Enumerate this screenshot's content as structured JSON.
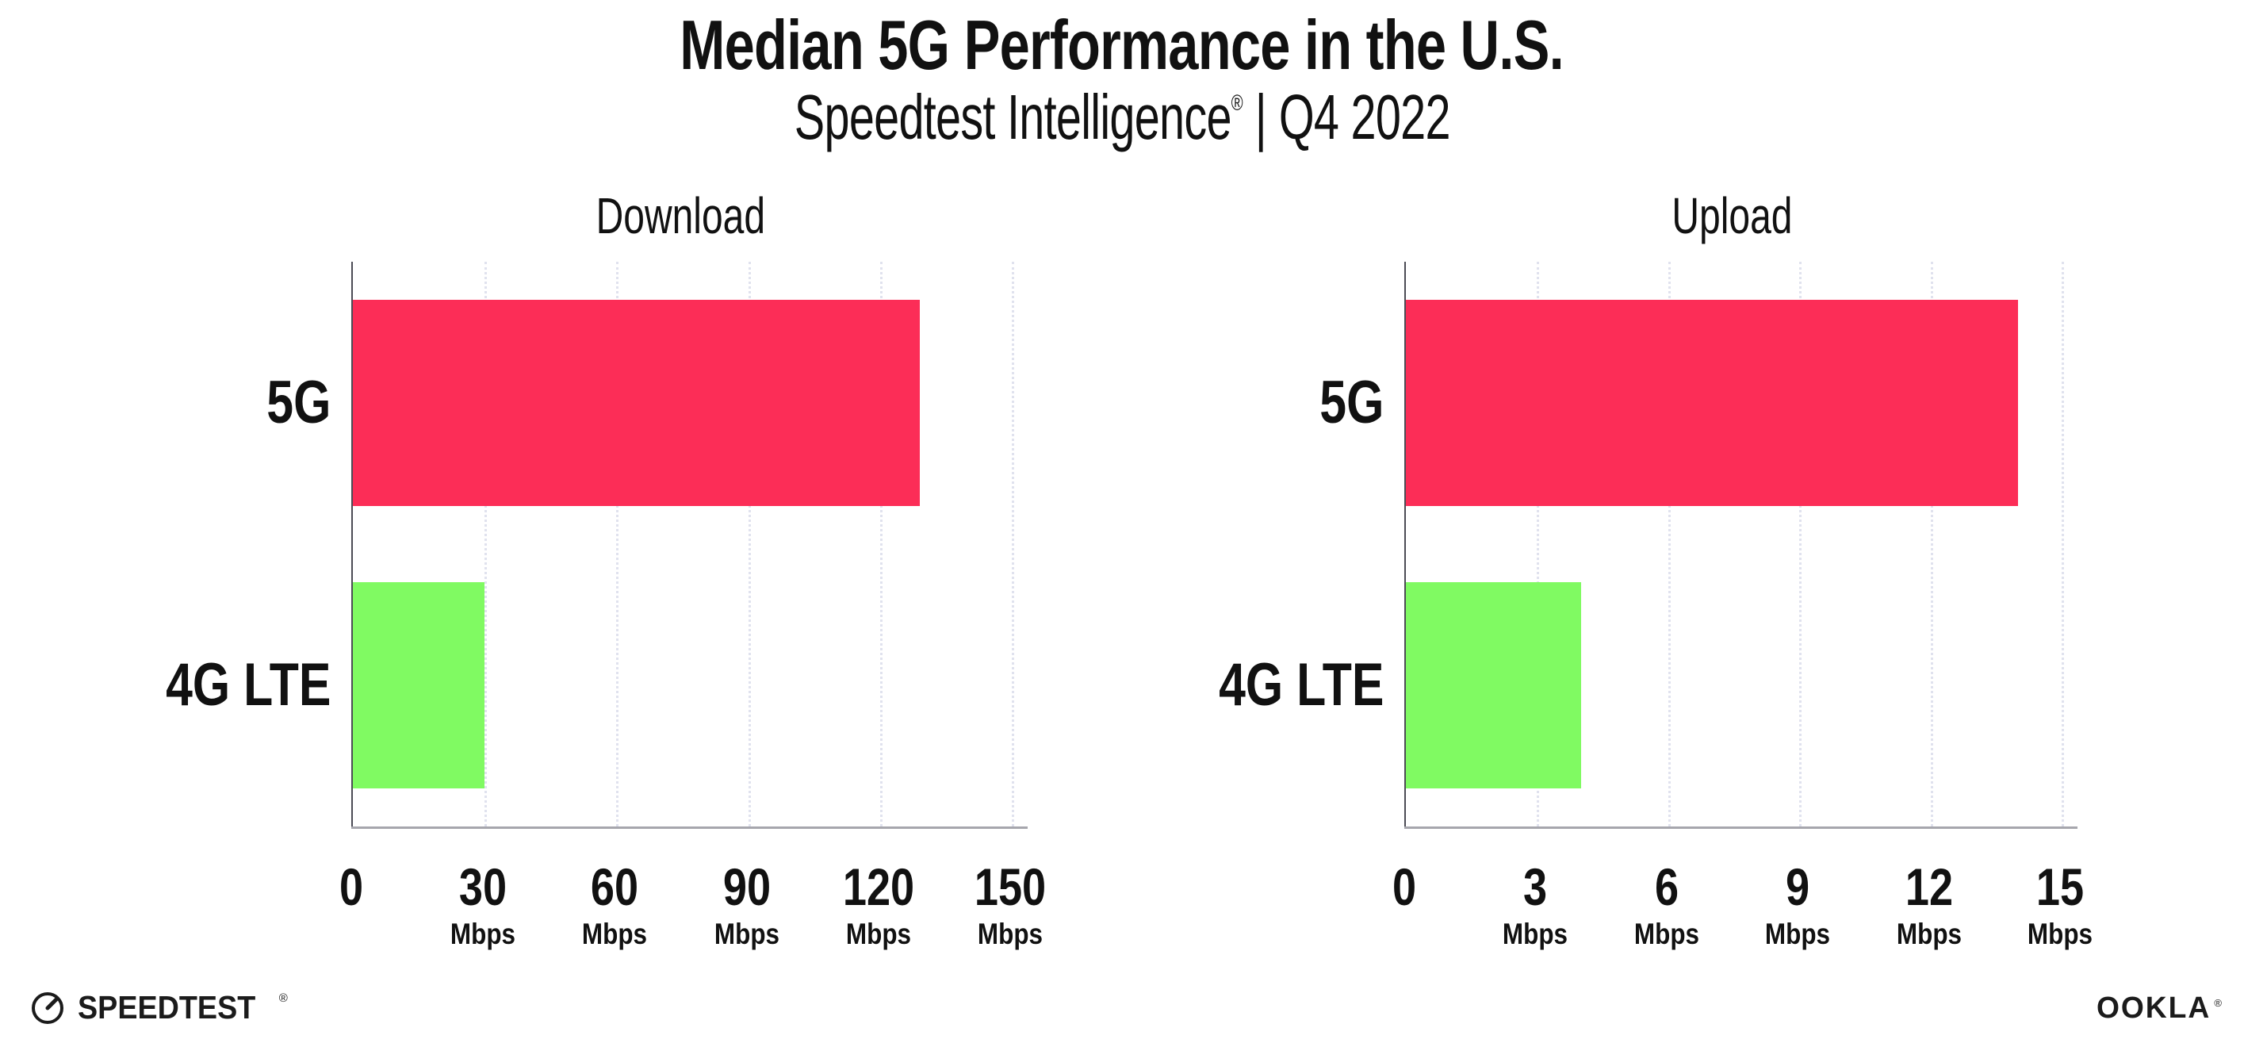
{
  "header": {
    "title": "Median 5G Performance in the U.S.",
    "subtitle_product": "Speedtest Intelligence",
    "subtitle_reg": "®",
    "subtitle_sep": "|",
    "subtitle_period": "Q4 2022"
  },
  "chart_data": [
    {
      "type": "bar",
      "orientation": "horizontal",
      "title": "Download",
      "categories": [
        "5G",
        "4G LTE"
      ],
      "values": [
        129,
        30
      ],
      "unit": "Mbps",
      "xlim": [
        0,
        150
      ],
      "xticks": [
        0,
        30,
        60,
        90,
        120,
        150
      ],
      "tick_labels": [
        {
          "label": "0",
          "unit": ""
        },
        {
          "label": "30",
          "unit": "Mbps"
        },
        {
          "label": "60",
          "unit": "Mbps"
        },
        {
          "label": "90",
          "unit": "Mbps"
        },
        {
          "label": "120",
          "unit": "Mbps"
        },
        {
          "label": "150",
          "unit": "Mbps"
        }
      ],
      "colors": [
        "#fc2d57",
        "#80fa62"
      ],
      "grid": "vertical-dotted",
      "legend": "none"
    },
    {
      "type": "bar",
      "orientation": "horizontal",
      "title": "Upload",
      "categories": [
        "5G",
        "4G LTE"
      ],
      "values": [
        14,
        4
      ],
      "unit": "Mbps",
      "xlim": [
        0,
        15
      ],
      "xticks": [
        0,
        3,
        6,
        9,
        12,
        15
      ],
      "tick_labels": [
        {
          "label": "0",
          "unit": ""
        },
        {
          "label": "3",
          "unit": "Mbps"
        },
        {
          "label": "6",
          "unit": "Mbps"
        },
        {
          "label": "9",
          "unit": "Mbps"
        },
        {
          "label": "12",
          "unit": "Mbps"
        },
        {
          "label": "15",
          "unit": "Mbps"
        }
      ],
      "colors": [
        "#fc2d57",
        "#80fa62"
      ],
      "grid": "vertical-dotted",
      "legend": "none"
    }
  ],
  "footer": {
    "speedtest_label": "SPEEDTEST",
    "speedtest_mark": "®",
    "ookla_label": "OOKLA",
    "ookla_mark": "®"
  },
  "colors": {
    "bar_5g": "#fc2d57",
    "bar_4g": "#80fa62",
    "axis_x": "#a6a6ad",
    "axis_y": "#4c4c55",
    "gridline": "#e0e2ee",
    "text": "#111111"
  }
}
